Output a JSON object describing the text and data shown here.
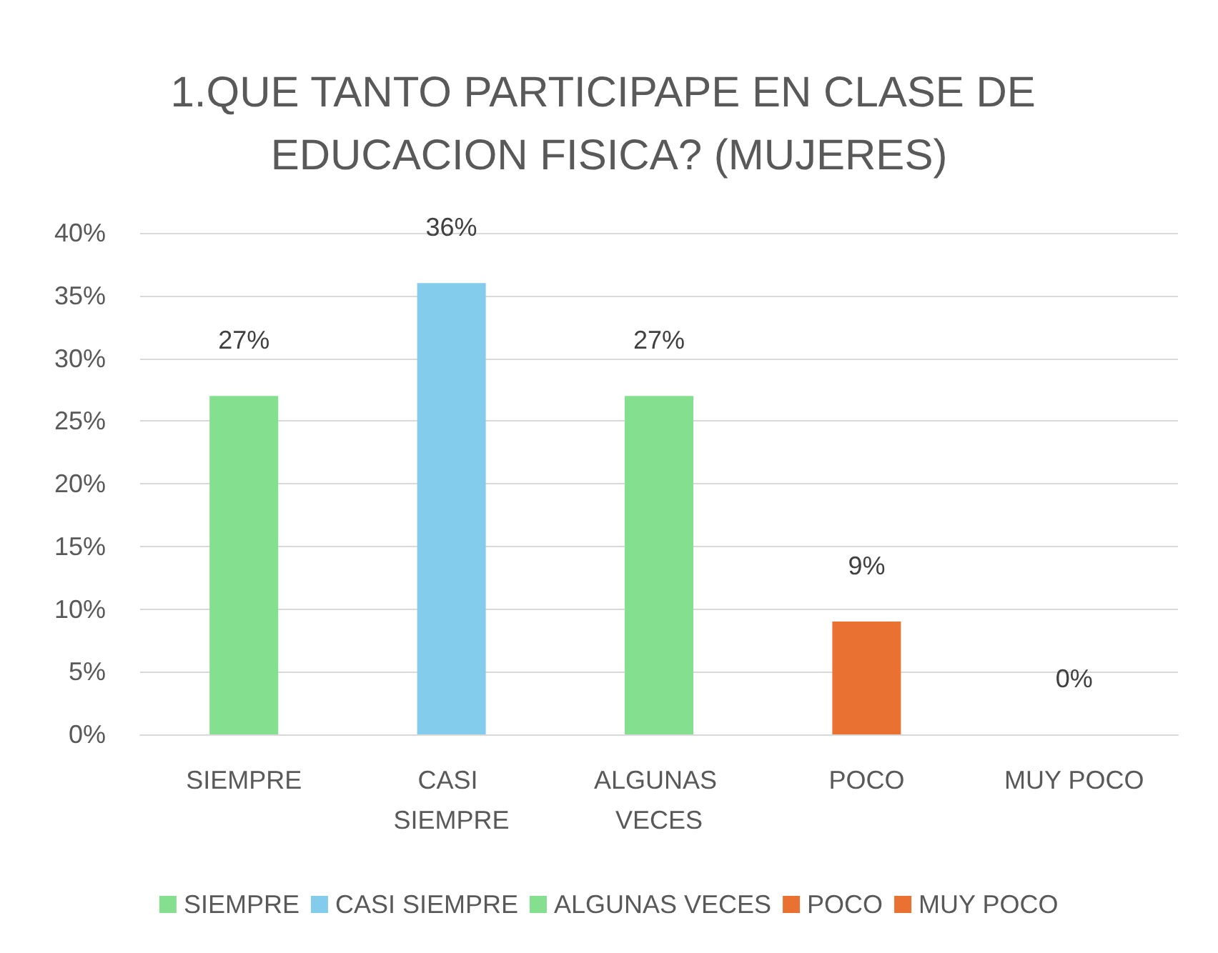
{
  "chart_data": {
    "type": "bar",
    "title": "1.QUE TANTO PARTICIPAPE EN CLASE DE EDUCACION FISICA? (MUJERES)",
    "categories": [
      "SIEMPRE",
      "CASI SIEMPRE",
      "ALGUNAS VECES",
      "POCO",
      "MUY POCO"
    ],
    "stacked": true,
    "series": [
      {
        "name": "SIEMPRE",
        "color": "#84e08f",
        "values": [
          27,
          null,
          null,
          null,
          null
        ],
        "value_labels": [
          "27%",
          null,
          null,
          null,
          null
        ]
      },
      {
        "name": "CASI SIEMPRE",
        "color": "#83cceb",
        "values": [
          null,
          36,
          null,
          null,
          null
        ],
        "value_labels": [
          null,
          "36%",
          null,
          null,
          null
        ]
      },
      {
        "name": "ALGUNAS VECES",
        "color": "#84e08f",
        "values": [
          null,
          null,
          27,
          null,
          null
        ],
        "value_labels": [
          null,
          null,
          "27%",
          null,
          null
        ]
      },
      {
        "name": "POCO",
        "color": "#e97132",
        "values": [
          null,
          null,
          null,
          9,
          null
        ],
        "value_labels": [
          null,
          null,
          null,
          "9%",
          null
        ]
      },
      {
        "name": "MUY POCO",
        "color": "#e97132",
        "values": [
          null,
          null,
          null,
          null,
          0
        ],
        "value_labels": [
          null,
          null,
          null,
          null,
          "0%"
        ]
      }
    ],
    "ylim": [
      0,
      40
    ],
    "yticks": [
      {
        "value": 0,
        "label": "0%"
      },
      {
        "value": 5,
        "label": "5%"
      },
      {
        "value": 10,
        "label": "10%"
      },
      {
        "value": 15,
        "label": "15%"
      },
      {
        "value": 20,
        "label": "20%"
      },
      {
        "value": 25,
        "label": "25%"
      },
      {
        "value": 30,
        "label": "30%"
      },
      {
        "value": 35,
        "label": "35%"
      },
      {
        "value": 40,
        "label": "40%"
      }
    ],
    "grid": "y",
    "legend": "bottom"
  }
}
